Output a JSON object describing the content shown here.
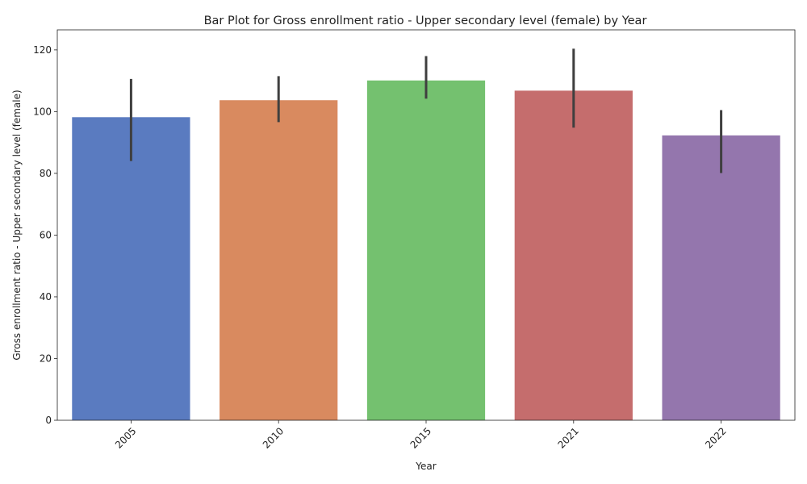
{
  "chart_data": {
    "type": "bar",
    "title": "Bar Plot for Gross enrollment ratio - Upper secondary level (female) by Year",
    "xlabel": "Year",
    "ylabel": "Gross enrollment ratio - Upper secondary level (female)",
    "categories": [
      "2005",
      "2010",
      "2015",
      "2021",
      "2022"
    ],
    "values": [
      98.2,
      103.7,
      110.1,
      106.8,
      92.3
    ],
    "error_low": [
      84.0,
      96.6,
      104.2,
      94.8,
      80.1
    ],
    "error_high": [
      110.6,
      111.5,
      118.0,
      120.4,
      100.5
    ],
    "colors": [
      "#5a7bc0",
      "#d98a5f",
      "#74c16f",
      "#c56d6d",
      "#9476ad"
    ],
    "error_color": "#3f3f3f",
    "ylim": [
      0,
      126.5
    ],
    "yticks": [
      0,
      20,
      40,
      60,
      80,
      100,
      120
    ],
    "xtick_rotation": 45,
    "grid": false,
    "legend": "none"
  }
}
